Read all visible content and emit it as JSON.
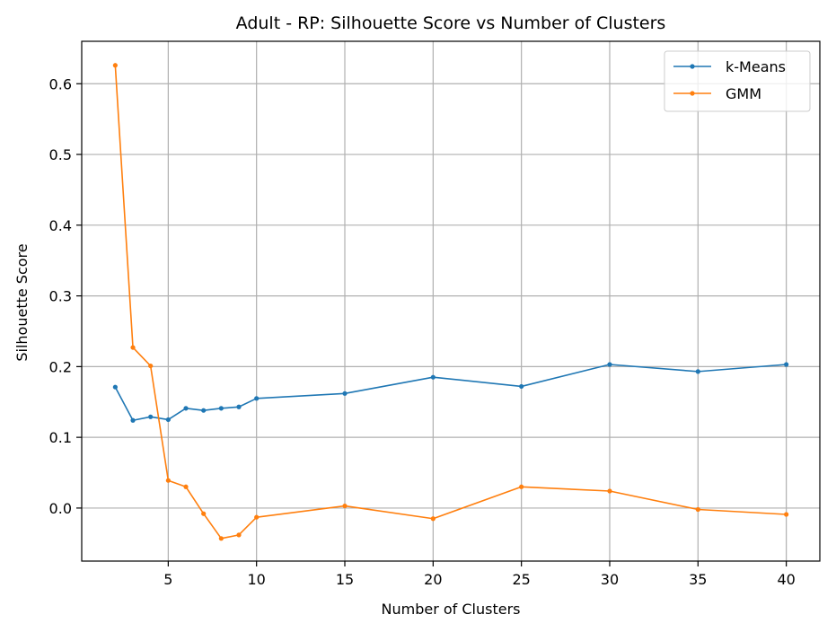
{
  "chart_data": {
    "type": "line",
    "title": "Adult - RP: Silhouette Score vs Number of Clusters",
    "xlabel": "Number of Clusters",
    "ylabel": "Silhouette Score",
    "xlim": [
      0.1,
      41.9
    ],
    "ylim": [
      -0.075,
      0.66
    ],
    "xticks": [
      5,
      10,
      15,
      20,
      25,
      30,
      35,
      40
    ],
    "yticks": [
      0.0,
      0.1,
      0.2,
      0.3,
      0.4,
      0.5,
      0.6
    ],
    "ytick_labels": [
      "0.0",
      "0.1",
      "0.2",
      "0.3",
      "0.4",
      "0.5",
      "0.6"
    ],
    "grid": true,
    "legend_position": "top-right",
    "x": [
      2,
      3,
      4,
      5,
      6,
      7,
      8,
      9,
      10,
      15,
      20,
      25,
      30,
      35,
      40
    ],
    "series": [
      {
        "name": "k-Means",
        "color": "#1f77b4",
        "values": [
          0.171,
          0.124,
          0.129,
          0.125,
          0.141,
          0.138,
          0.141,
          0.143,
          0.155,
          0.162,
          0.185,
          0.172,
          0.203,
          0.193,
          0.203
        ]
      },
      {
        "name": "GMM",
        "color": "#ff7f0e",
        "values": [
          0.626,
          0.227,
          0.201,
          0.039,
          0.03,
          -0.008,
          -0.043,
          -0.038,
          -0.013,
          0.003,
          -0.015,
          0.03,
          0.024,
          -0.002,
          -0.009
        ]
      }
    ]
  }
}
